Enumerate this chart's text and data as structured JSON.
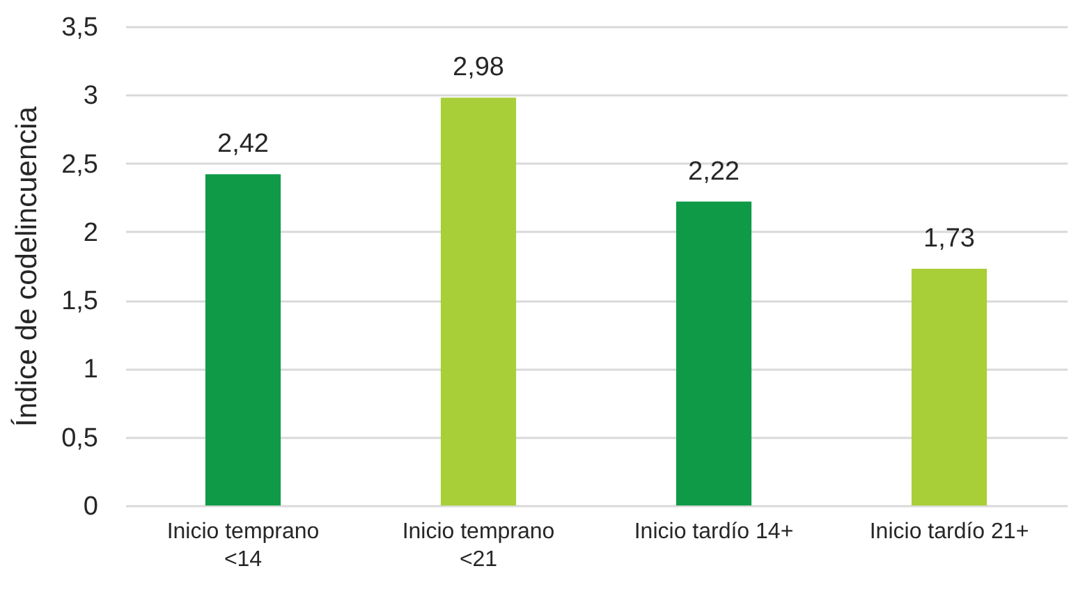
{
  "chart_data": {
    "type": "bar",
    "ylabel": "Índice de codelincuencia",
    "categories": [
      "Inicio temprano <14",
      "Inicio temprano <21",
      "Inicio tardío 14+",
      "Inicio tardío 21+"
    ],
    "values": [
      2.42,
      2.98,
      2.22,
      1.73
    ],
    "colors": [
      "#0f9a48",
      "#a8cf38",
      "#0f9a48",
      "#a8cf38"
    ],
    "value_labels": [
      "2,42",
      "2,98",
      "2,22",
      "1,73"
    ],
    "ylim": [
      0,
      3.5
    ],
    "yticks": [
      0,
      {
        "value": 0.5,
        "label": "0,5"
      },
      1,
      {
        "value": 1.5,
        "label": "1,5"
      },
      2,
      {
        "value": 2.5,
        "label": "2,5"
      },
      3,
      {
        "value": 3.5,
        "label": "3,5"
      }
    ],
    "grid": "y"
  }
}
